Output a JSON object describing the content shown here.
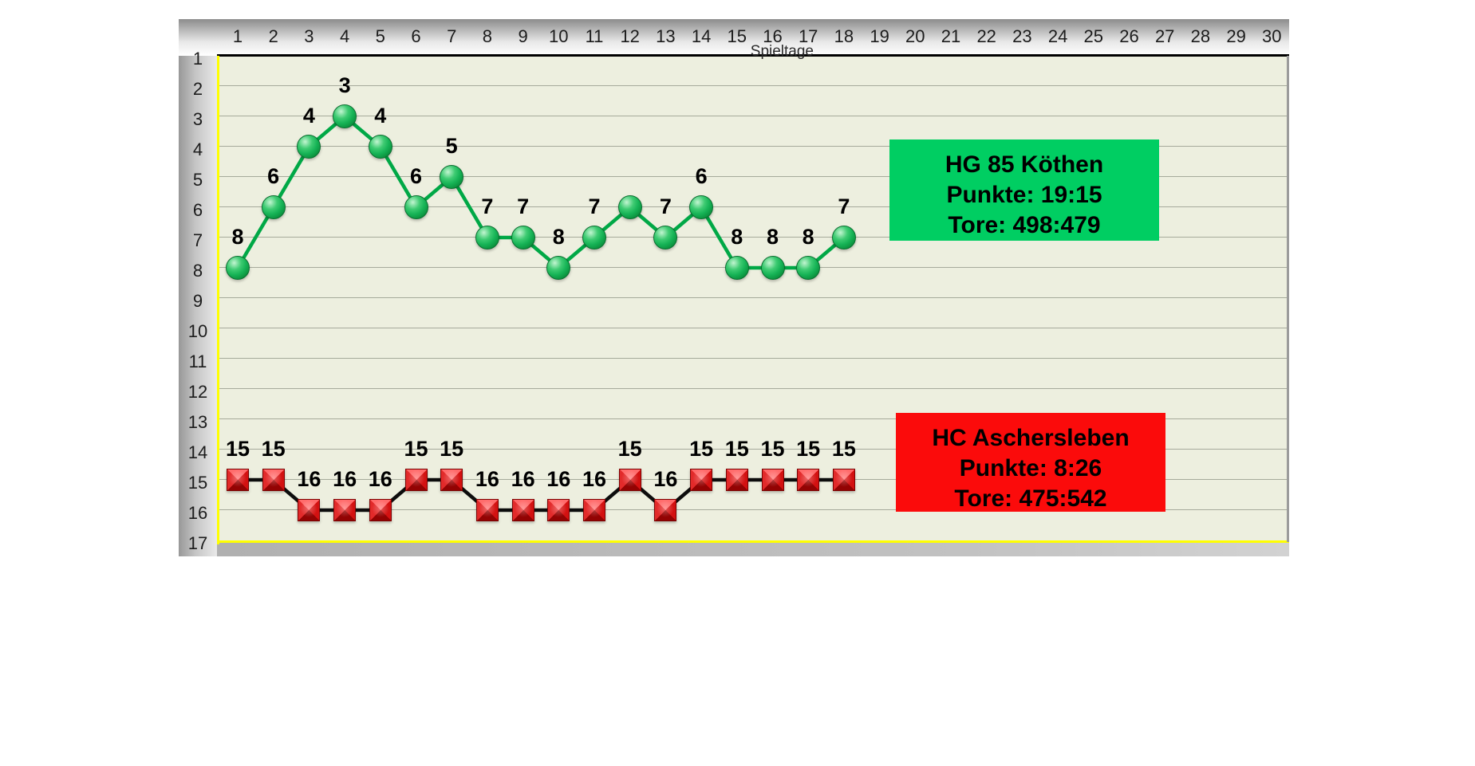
{
  "chart_data": {
    "type": "line",
    "title": "",
    "xlabel": "Spieltage",
    "ylabel": "",
    "x_ticks": [
      1,
      2,
      3,
      4,
      5,
      6,
      7,
      8,
      9,
      10,
      11,
      12,
      13,
      14,
      15,
      16,
      17,
      18,
      19,
      20,
      21,
      22,
      23,
      24,
      25,
      26,
      27,
      28,
      29,
      30
    ],
    "y_ticks": [
      1,
      2,
      3,
      4,
      5,
      6,
      7,
      8,
      9,
      10,
      11,
      12,
      13,
      14,
      15,
      16,
      17
    ],
    "x_range": [
      1,
      30
    ],
    "y_range": [
      1,
      17
    ],
    "y_inverted": true,
    "grid": "horizontal-only",
    "played_days": 18,
    "series": [
      {
        "name": "HG 85 Köthen",
        "marker": "circle",
        "marker_color": "#16b356",
        "line_color": "#00a846",
        "x": [
          1,
          2,
          3,
          4,
          5,
          6,
          7,
          8,
          9,
          10,
          11,
          12,
          13,
          14,
          15,
          16,
          17,
          18
        ],
        "values": [
          8,
          6,
          4,
          3,
          4,
          6,
          5,
          7,
          7,
          8,
          7,
          6,
          7,
          6,
          8,
          8,
          8,
          7
        ],
        "labels": [
          "8",
          "6",
          "4",
          "3",
          "4",
          "6",
          "5",
          "7",
          "7",
          "8",
          "7",
          "",
          "7",
          "6",
          "8",
          "8",
          "8",
          "7"
        ]
      },
      {
        "name": "HC Aschersleben",
        "marker": "square",
        "marker_color": "#ee1111",
        "line_color": "#0d0d0d",
        "x": [
          1,
          2,
          3,
          4,
          5,
          6,
          7,
          8,
          9,
          10,
          11,
          12,
          13,
          14,
          15,
          16,
          17,
          18
        ],
        "values": [
          15,
          15,
          16,
          16,
          16,
          15,
          15,
          16,
          16,
          16,
          16,
          15,
          16,
          15,
          15,
          15,
          15,
          15
        ],
        "labels": [
          "15",
          "15",
          "16",
          "16",
          "16",
          "15",
          "15",
          "16",
          "16",
          "16",
          "16",
          "15",
          "16",
          "15",
          "15",
          "15",
          "15",
          "15"
        ]
      }
    ],
    "legend_boxes": [
      {
        "team": "HG 85 Köthen",
        "punkte": "Punkte: 19:15",
        "tore": "Tore: 498:479",
        "bg": "#00ce62"
      },
      {
        "team": "HC Aschersleben",
        "punkte": "Punkte: 8:26",
        "tore": "Tore: 475:542",
        "bg": "#fb0b0b"
      }
    ]
  },
  "colors": {
    "plot_bg": "#edefdf",
    "gridline": "#a6aa9b",
    "top_axis_line": "#000000",
    "plot_border": "#ffff00",
    "frame_gray": "#b0b0b0"
  }
}
